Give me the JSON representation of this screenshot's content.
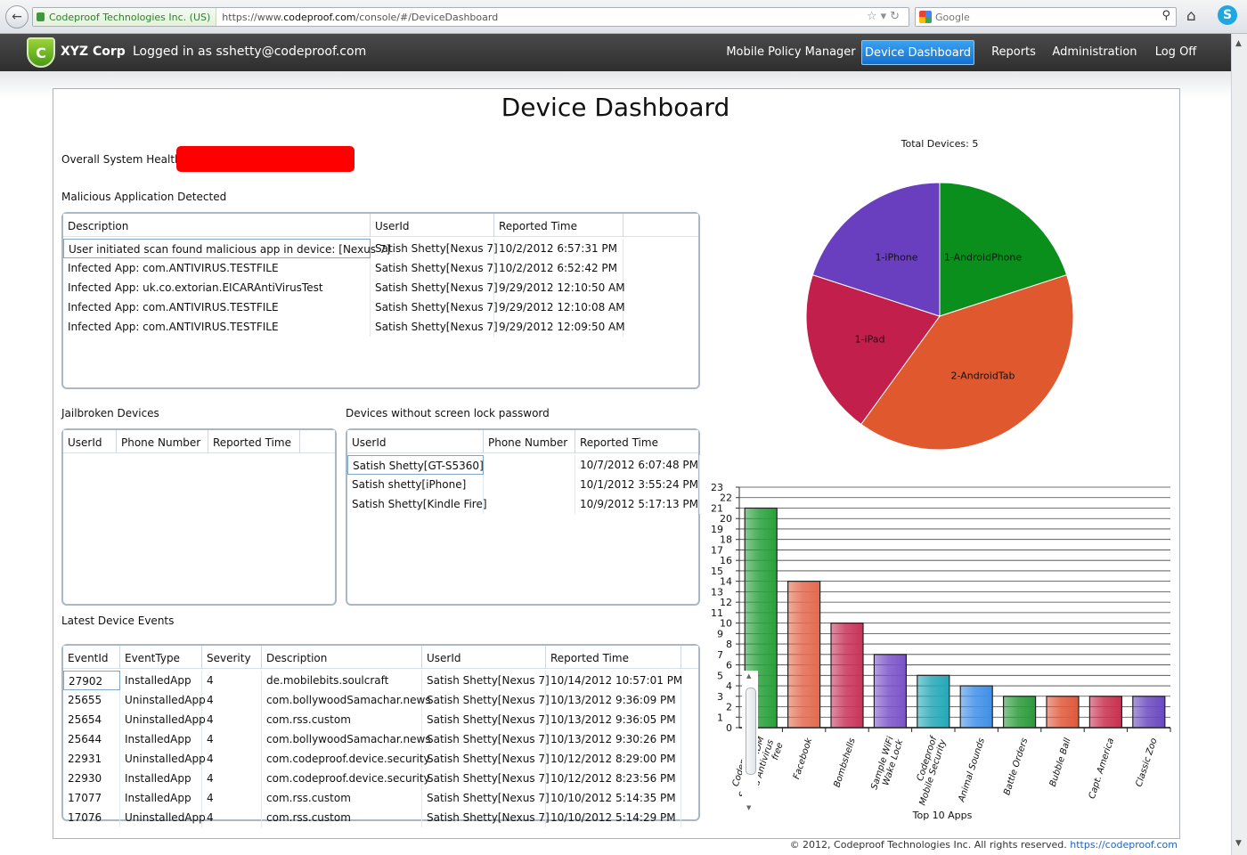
{
  "browser": {
    "site_identity": "Codeproof Technologies Inc. (US)",
    "url_prefix": "https://www.",
    "url_domain": "codeproof.com",
    "url_path": "/console/#/DeviceDashboard",
    "search_placeholder": "Google"
  },
  "header": {
    "corp_name": "XYZ Corp",
    "logged_in": "Logged in as sshetty@codeproof.com",
    "nav": [
      "Mobile Policy Manager",
      "Device Dashboard",
      "Reports",
      "Administration",
      "Log Off"
    ],
    "active_nav": "Device Dashboard"
  },
  "page": {
    "title": "Device Dashboard",
    "health_label": "Overall System Health",
    "health_color": "#ff0000"
  },
  "malicious": {
    "title": "Malicious Application Detected",
    "columns": [
      "Description",
      "UserId",
      "Reported Time"
    ],
    "rows": [
      [
        "User initiated scan found malicious app in device: [Nexus 7]",
        "Satish Shetty[Nexus 7]",
        "10/2/2012 6:57:31 PM"
      ],
      [
        "Infected App: com.ANTIVIRUS.TESTFILE",
        "Satish Shetty[Nexus 7]",
        "10/2/2012 6:52:42 PM"
      ],
      [
        "Infected App: uk.co.extorian.EICARAntiVirusTest",
        "Satish Shetty[Nexus 7]",
        "9/29/2012 12:10:50 AM"
      ],
      [
        "Infected App: com.ANTIVIRUS.TESTFILE",
        "Satish Shetty[Nexus 7]",
        "9/29/2012 12:10:08 AM"
      ],
      [
        "Infected App: com.ANTIVIRUS.TESTFILE",
        "Satish Shetty[Nexus 7]",
        "9/29/2012 12:09:50 AM"
      ]
    ]
  },
  "jailbroken": {
    "title": "Jailbroken Devices",
    "columns": [
      "UserId",
      "Phone Number",
      "Reported Time"
    ],
    "rows": []
  },
  "nolock": {
    "title": "Devices without screen lock password",
    "columns": [
      "UserId",
      "Phone Number",
      "Reported Time"
    ],
    "rows": [
      [
        "Satish Shetty[GT-S5360]",
        "",
        "10/7/2012 6:07:48 PM"
      ],
      [
        "Satish shetty[iPhone]",
        "",
        "10/1/2012 3:55:24 PM"
      ],
      [
        "Satish Shetty[Kindle Fire]",
        "",
        "10/9/2012 5:17:13 PM"
      ]
    ]
  },
  "events": {
    "title": "Latest Device Events",
    "columns": [
      "EventId",
      "EventType",
      "Severity",
      "Description",
      "UserId",
      "Reported Time"
    ],
    "rows": [
      [
        "27902",
        "InstalledApp",
        "4",
        "de.mobilebits.soulcraft",
        "Satish Shetty[Nexus 7]",
        "10/14/2012 10:57:01 PM"
      ],
      [
        "25655",
        "UninstalledApp",
        "4",
        "com.bollywoodSamachar.news",
        "Satish Shetty[Nexus 7]",
        "10/13/2012 9:36:09 PM"
      ],
      [
        "25654",
        "UninstalledApp",
        "4",
        "com.rss.custom",
        "Satish Shetty[Nexus 7]",
        "10/13/2012 9:36:05 PM"
      ],
      [
        "25644",
        "InstalledApp",
        "4",
        "com.bollywoodSamachar.news",
        "Satish Shetty[Nexus 7]",
        "10/13/2012 9:30:26 PM"
      ],
      [
        "22931",
        "UninstalledApp",
        "4",
        "com.codeproof.device.security",
        "Satish Shetty[Nexus 7]",
        "10/12/2012 8:29:00 PM"
      ],
      [
        "22930",
        "InstalledApp",
        "4",
        "com.codeproof.device.security",
        "Satish Shetty[Nexus 7]",
        "10/12/2012 8:23:56 PM"
      ],
      [
        "17077",
        "InstalledApp",
        "4",
        "com.rss.custom",
        "Satish Shetty[Nexus 7]",
        "10/10/2012 5:14:35 PM"
      ],
      [
        "17076",
        "UninstalledApp",
        "4",
        "com.rss.custom",
        "Satish Shetty[Nexus 7]",
        "10/10/2012 5:14:29 PM"
      ]
    ]
  },
  "chart_data": [
    {
      "type": "pie",
      "title": "Total Devices: 5",
      "slices": [
        {
          "label": "1-AndroidPhone",
          "value": 1,
          "color": "#0a8f1d"
        },
        {
          "label": "2-AndroidTab",
          "value": 2,
          "color": "#e0582e"
        },
        {
          "label": "1-iPad",
          "value": 1,
          "color": "#c21f4c"
        },
        {
          "label": "1-iPhone",
          "value": 1,
          "color": "#6a3fbf"
        }
      ]
    },
    {
      "type": "bar",
      "xlabel": "Top 10 Apps",
      "ylim": [
        0,
        23
      ],
      "yticks": [
        0,
        1,
        2,
        3,
        4,
        5,
        6,
        7,
        8,
        9,
        10,
        11,
        12,
        13,
        14,
        15,
        16,
        17,
        18,
        19,
        20,
        21,
        22,
        23
      ],
      "grid": true,
      "categories": [
        "Codeproof® Security, MDM and Antivirus free",
        "Facebook",
        "Bombshells",
        "Sample WiFi Wake Lock",
        "Codeproof Mobile Security",
        "Animal Sounds",
        "Battle Orders",
        "Bubble Ball",
        "Capt. America",
        "Classic Zoo"
      ],
      "category_lines": [
        [
          "Codeproof®",
          "Security, MDM",
          "and Antivirus",
          "free"
        ],
        [
          "Facebook"
        ],
        [
          "Bombshells"
        ],
        [
          "Sample WiFi",
          "Wake Lock"
        ],
        [
          "Codeproof",
          "Mobile Security"
        ],
        [
          "Animal Sounds"
        ],
        [
          "Battle Orders"
        ],
        [
          "Bubble Ball"
        ],
        [
          "Capt. America"
        ],
        [
          "Classic Zoo"
        ]
      ],
      "values": [
        21,
        14,
        10,
        7,
        5,
        4,
        3,
        3,
        3,
        3
      ],
      "colors": [
        "#28a03c",
        "#e36a50",
        "#c8335a",
        "#7a52c8",
        "#24a8b8",
        "#3f8fe8",
        "#2a9a3a",
        "#e0583a",
        "#c8304e",
        "#6a48c0"
      ]
    }
  ],
  "footer": {
    "copyright": "© 2012, Codeproof Technologies Inc. All rights reserved. ",
    "link": "https://codeproof.com"
  }
}
